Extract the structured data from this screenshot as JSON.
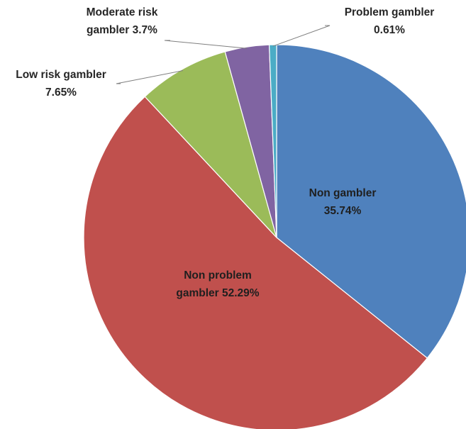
{
  "chart_data": {
    "type": "pie",
    "title": "",
    "slices": [
      {
        "name": "Non gambler",
        "value": 35.74,
        "label_lines": [
          "Non gambler",
          "35.74%"
        ],
        "color": "#4f81bd"
      },
      {
        "name": "Non problem gambler",
        "value": 52.29,
        "label_lines": [
          "Non problem",
          "gambler 52.29%"
        ],
        "color": "#c0504d"
      },
      {
        "name": "Low risk gambler",
        "value": 7.65,
        "label_lines": [
          "Low risk gambler",
          "7.65%"
        ],
        "color": "#9bbb59"
      },
      {
        "name": "Moderate risk gambler",
        "value": 3.7,
        "label_lines": [
          "Moderate risk",
          "gambler 3.7%"
        ],
        "color": "#8064a2"
      },
      {
        "name": "Problem gambler",
        "value": 0.61,
        "label_lines": [
          "Problem gambler",
          "0.61%"
        ],
        "color": "#4bacc6"
      }
    ],
    "legend": "none",
    "label_style": "slice labels with leader lines for small slices"
  }
}
